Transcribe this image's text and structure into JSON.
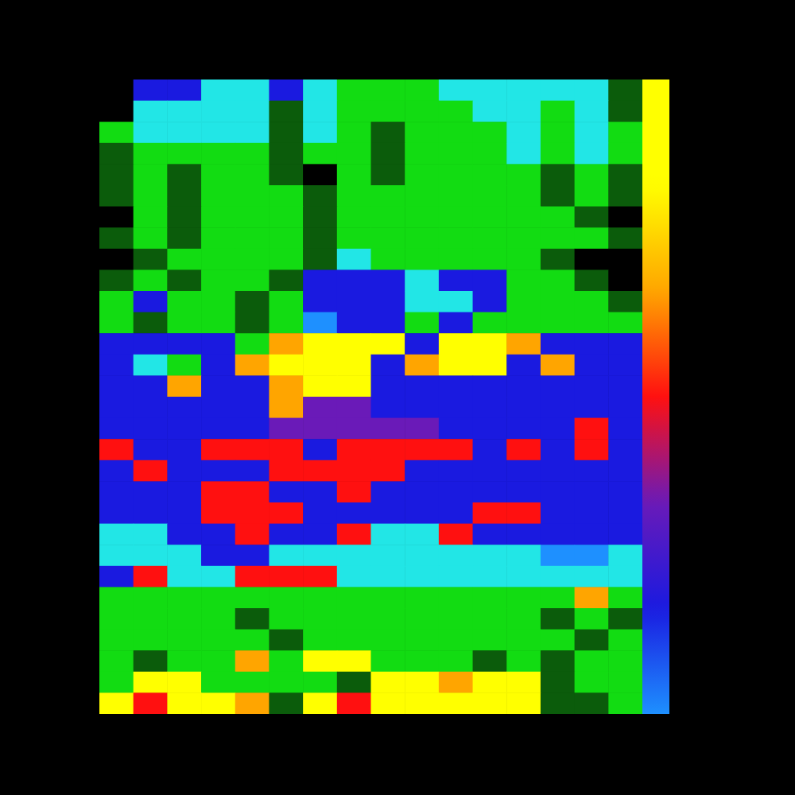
{
  "chart_data": {
    "type": "heatmap",
    "tick_labels": false,
    "values": [
      [
        0,
        5,
        5,
        3,
        3,
        5,
        3,
        2,
        2,
        2,
        3,
        3,
        3,
        3,
        3,
        1
      ],
      [
        0,
        3,
        3,
        3,
        3,
        1,
        3,
        2,
        2,
        2,
        2,
        3,
        3,
        2,
        3,
        1
      ],
      [
        2,
        3,
        3,
        3,
        3,
        1,
        3,
        2,
        1,
        2,
        2,
        2,
        3,
        2,
        3,
        2
      ],
      [
        1,
        2,
        2,
        2,
        2,
        1,
        2,
        2,
        1,
        2,
        2,
        2,
        3,
        2,
        3,
        2
      ],
      [
        1,
        2,
        1,
        2,
        2,
        1,
        0,
        2,
        1,
        2,
        2,
        2,
        2,
        1,
        2,
        1
      ],
      [
        1,
        2,
        1,
        2,
        2,
        2,
        1,
        2,
        2,
        2,
        2,
        2,
        2,
        1,
        2,
        1
      ],
      [
        0,
        2,
        1,
        2,
        2,
        2,
        1,
        2,
        2,
        2,
        2,
        2,
        2,
        2,
        1,
        0
      ],
      [
        1,
        2,
        1,
        2,
        2,
        2,
        1,
        2,
        2,
        2,
        2,
        2,
        2,
        2,
        2,
        1
      ],
      [
        0,
        1,
        2,
        2,
        2,
        2,
        1,
        3,
        2,
        2,
        2,
        2,
        2,
        1,
        0,
        0
      ],
      [
        1,
        2,
        1,
        2,
        2,
        1,
        5,
        5,
        5,
        3,
        5,
        5,
        2,
        2,
        1,
        0
      ],
      [
        2,
        5,
        2,
        2,
        1,
        2,
        5,
        5,
        5,
        3,
        3,
        5,
        2,
        2,
        2,
        1
      ],
      [
        2,
        1,
        2,
        2,
        1,
        2,
        4,
        5,
        5,
        2,
        5,
        2,
        2,
        2,
        2,
        2
      ],
      [
        5,
        5,
        5,
        5,
        2,
        8,
        9,
        9,
        9,
        5,
        9,
        9,
        8,
        5,
        5,
        5
      ],
      [
        5,
        3,
        2,
        5,
        8,
        9,
        9,
        9,
        5,
        8,
        9,
        9,
        5,
        8,
        5,
        5
      ],
      [
        5,
        5,
        8,
        5,
        5,
        8,
        9,
        9,
        5,
        5,
        5,
        5,
        5,
        5,
        5,
        5
      ],
      [
        5,
        5,
        5,
        5,
        5,
        8,
        6,
        6,
        5,
        5,
        5,
        5,
        5,
        5,
        5,
        5
      ],
      [
        5,
        5,
        5,
        5,
        5,
        6,
        6,
        6,
        6,
        6,
        5,
        5,
        5,
        5,
        7,
        5
      ],
      [
        7,
        5,
        5,
        7,
        7,
        7,
        5,
        7,
        7,
        7,
        7,
        5,
        7,
        5,
        7,
        5
      ],
      [
        5,
        7,
        5,
        5,
        5,
        7,
        7,
        7,
        7,
        5,
        5,
        5,
        5,
        5,
        5,
        5
      ],
      [
        5,
        5,
        5,
        7,
        7,
        5,
        5,
        7,
        5,
        5,
        5,
        5,
        5,
        5,
        5,
        5
      ],
      [
        5,
        5,
        5,
        7,
        7,
        7,
        5,
        5,
        5,
        5,
        5,
        7,
        7,
        5,
        5,
        5
      ],
      [
        3,
        3,
        5,
        5,
        7,
        5,
        5,
        7,
        3,
        3,
        7,
        5,
        5,
        5,
        5,
        5
      ],
      [
        3,
        3,
        3,
        5,
        5,
        3,
        3,
        3,
        3,
        3,
        3,
        3,
        3,
        4,
        4,
        3
      ],
      [
        5,
        7,
        3,
        3,
        7,
        7,
        7,
        3,
        3,
        3,
        3,
        3,
        3,
        3,
        3,
        3
      ],
      [
        2,
        2,
        2,
        2,
        2,
        2,
        2,
        2,
        2,
        2,
        2,
        2,
        2,
        2,
        8,
        2
      ],
      [
        2,
        2,
        2,
        2,
        1,
        2,
        2,
        2,
        2,
        2,
        2,
        2,
        2,
        1,
        2,
        1
      ],
      [
        2,
        2,
        2,
        2,
        2,
        1,
        2,
        2,
        2,
        2,
        2,
        2,
        2,
        2,
        1,
        2
      ],
      [
        2,
        1,
        2,
        2,
        8,
        2,
        9,
        9,
        2,
        2,
        2,
        1,
        2,
        1,
        2,
        2
      ],
      [
        2,
        9,
        9,
        2,
        2,
        2,
        2,
        1,
        9,
        9,
        8,
        9,
        9,
        1,
        2,
        2
      ],
      [
        9,
        7,
        9,
        9,
        8,
        1,
        9,
        7,
        9,
        9,
        9,
        9,
        9,
        1,
        1,
        2
      ]
    ],
    "colorbar": {
      "range": [
        4,
        10
      ]
    }
  }
}
